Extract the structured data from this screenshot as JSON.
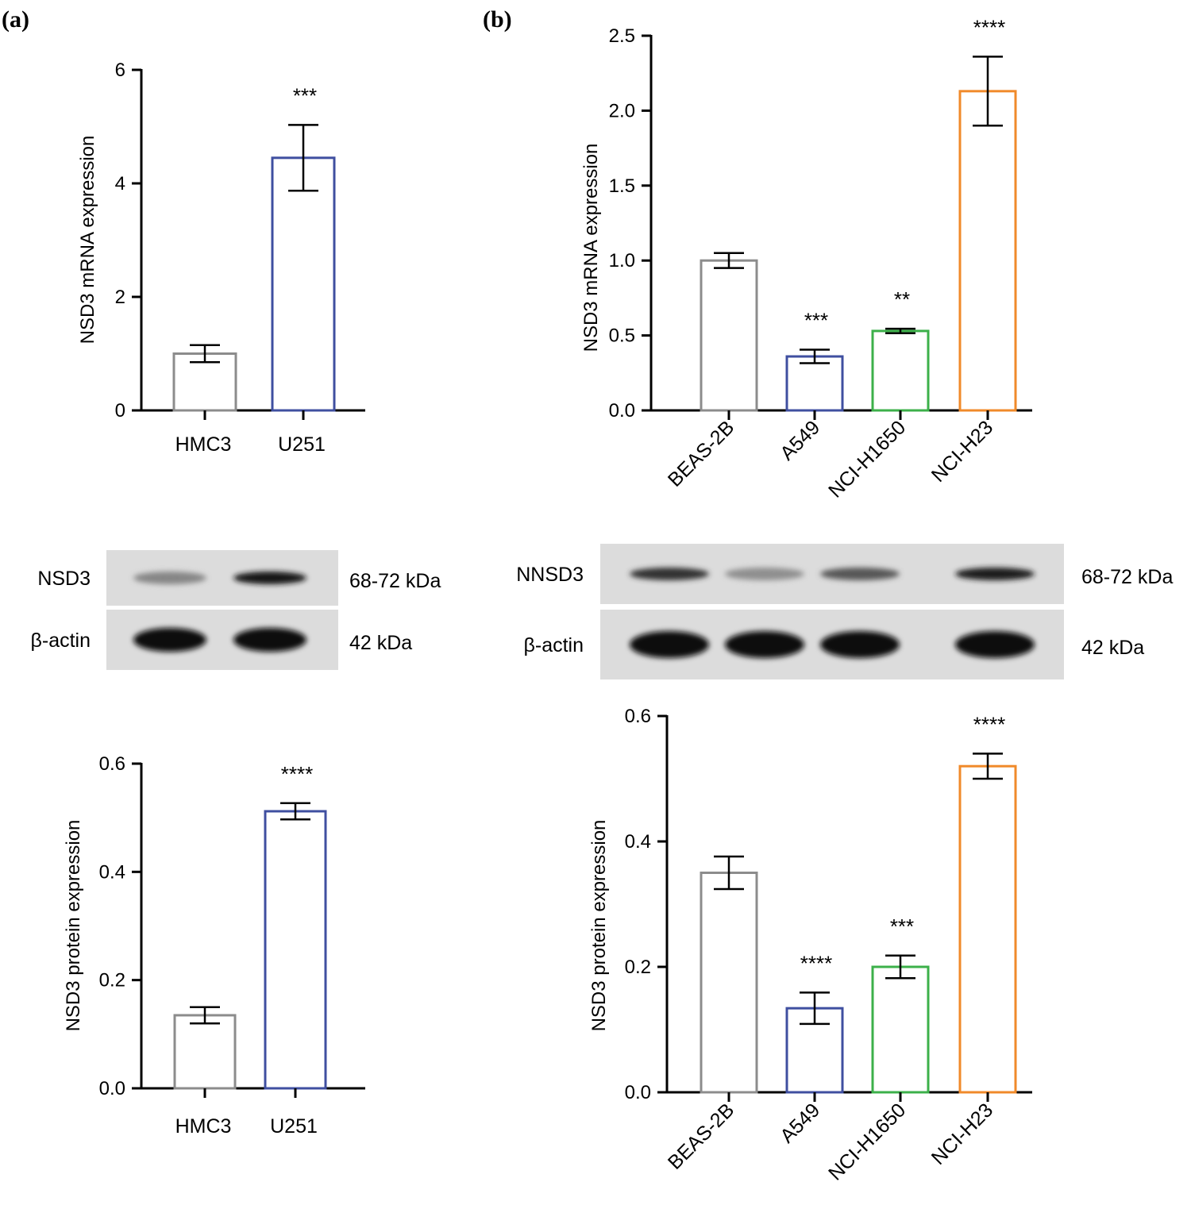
{
  "panels": [
    {
      "id": "a",
      "label": "(a)"
    },
    {
      "id": "b",
      "label": "(b)"
    }
  ],
  "colors": {
    "gray": "#8c8c8c",
    "blue": "#3f4fa0",
    "green": "#3cb04a",
    "orange": "#f08a2a"
  },
  "blots": [
    {
      "id": "a",
      "lanes": 2,
      "rows": [
        {
          "label": "NSD3",
          "kda": "68-72 kDa",
          "intensity": [
            0.35,
            0.95
          ]
        },
        {
          "label": "β-actin",
          "kda": "42 kDa",
          "intensity": [
            1.0,
            1.0
          ]
        }
      ]
    },
    {
      "id": "b",
      "lanes": 4,
      "rows": [
        {
          "label": "NNSD3",
          "kda": "68-72 kDa",
          "intensity": [
            0.8,
            0.3,
            0.6,
            0.9
          ]
        },
        {
          "label": "β-actin",
          "kda": "42 kDa",
          "intensity": [
            1.0,
            1.0,
            1.0,
            1.0
          ]
        }
      ]
    }
  ],
  "chart_data": [
    {
      "id": "a-mrna",
      "type": "bar",
      "categories": [
        "HMC3",
        "U251"
      ],
      "values": [
        1.0,
        4.45
      ],
      "errors": [
        0.15,
        0.58
      ],
      "significance": [
        "",
        "***"
      ],
      "colors": [
        "gray",
        "blue"
      ],
      "ylabel": "NSD3 mRNA expression",
      "ylim": [
        0,
        6
      ],
      "yticks": [
        "0",
        "2",
        "4",
        "6"
      ],
      "grid": false
    },
    {
      "id": "a-protein",
      "type": "bar",
      "categories": [
        "HMC3",
        "U251"
      ],
      "values": [
        0.135,
        0.512
      ],
      "errors": [
        0.015,
        0.015
      ],
      "significance": [
        "",
        "****"
      ],
      "colors": [
        "gray",
        "blue"
      ],
      "ylabel": "NSD3 protein expression",
      "ylim": [
        0,
        0.6
      ],
      "yticks": [
        "0.0",
        "0.2",
        "0.4",
        "0.6"
      ],
      "grid": false
    },
    {
      "id": "b-mrna",
      "type": "bar",
      "categories": [
        "BEAS-2B",
        "A549",
        "NCI-H1650",
        "NCI-H23"
      ],
      "values": [
        1.0,
        0.36,
        0.53,
        2.13
      ],
      "errors": [
        0.05,
        0.045,
        0.015,
        0.23
      ],
      "significance": [
        "",
        "***",
        "**",
        "****"
      ],
      "colors": [
        "gray",
        "blue",
        "green",
        "orange"
      ],
      "ylabel": "NSD3 mRNA expression",
      "ylim": [
        0,
        2.5
      ],
      "yticks": [
        "0.0",
        "0.5",
        "1.0",
        "1.5",
        "2.0",
        "2.5"
      ],
      "grid": false
    },
    {
      "id": "b-protein",
      "type": "bar",
      "categories": [
        "BEAS-2B",
        "A549",
        "NCI-H1650",
        "NCI-H23"
      ],
      "values": [
        0.35,
        0.134,
        0.2,
        0.52
      ],
      "errors": [
        0.026,
        0.025,
        0.018,
        0.02
      ],
      "significance": [
        "",
        "****",
        "***",
        "****"
      ],
      "colors": [
        "gray",
        "blue",
        "green",
        "orange"
      ],
      "ylabel": "NSD3 protein expression",
      "ylim": [
        0,
        0.6
      ],
      "yticks": [
        "0.0",
        "0.2",
        "0.4",
        "0.6"
      ],
      "grid": false
    }
  ]
}
